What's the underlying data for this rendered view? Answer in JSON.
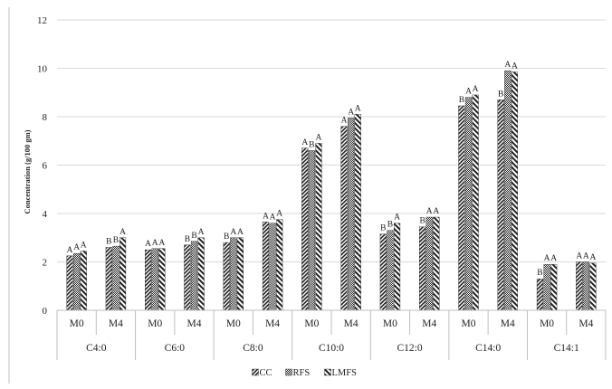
{
  "chart_data": {
    "type": "bar",
    "ylabel": "Concentration  (g/100 gm)",
    "ylim": [
      0,
      12
    ],
    "yticks": [
      "0",
      "2",
      "4",
      "6",
      "8",
      "10",
      "12"
    ],
    "grid": true,
    "legend_position": "bottom",
    "groups": [
      {
        "label": "C4:0",
        "categories": [
          "M0",
          "M4"
        ]
      },
      {
        "label": "C6:0",
        "categories": [
          "M0",
          "M4"
        ]
      },
      {
        "label": "C8:0",
        "categories": [
          "M0",
          "M4"
        ]
      },
      {
        "label": "C10:0",
        "categories": [
          "M0",
          "M4"
        ]
      },
      {
        "label": "C12:0",
        "categories": [
          "M0",
          "M4"
        ]
      },
      {
        "label": "C14:0",
        "categories": [
          "M0",
          "M4"
        ]
      },
      {
        "label": "C14:1",
        "categories": [
          "M0",
          "M4"
        ]
      }
    ],
    "series": [
      {
        "name": "CC",
        "pattern": "diagonal",
        "values": [
          2.25,
          2.6,
          2.5,
          2.7,
          2.8,
          3.65,
          6.7,
          7.6,
          3.15,
          3.45,
          8.45,
          8.7,
          1.3,
          2.0
        ],
        "letters": [
          "A",
          "B",
          "A",
          "B",
          "B",
          "A",
          "A",
          "A",
          "B",
          "B",
          "B",
          "B",
          "B",
          "A"
        ]
      },
      {
        "name": "RFS",
        "pattern": "checker",
        "values": [
          2.35,
          2.65,
          2.55,
          2.85,
          3.0,
          3.6,
          6.6,
          7.95,
          3.3,
          3.85,
          8.8,
          9.9,
          1.9,
          2.0
        ],
        "letters": [
          "A",
          "B",
          "A",
          "B",
          "A",
          "A",
          "B",
          "A",
          "B",
          "A",
          "A",
          "A",
          "A",
          "A"
        ]
      },
      {
        "name": "LMFS",
        "pattern": "antidiagonal",
        "values": [
          2.45,
          3.0,
          2.55,
          3.0,
          3.0,
          3.75,
          6.9,
          8.1,
          3.6,
          3.85,
          8.9,
          9.85,
          1.9,
          1.95
        ],
        "letters": [
          "A",
          "A",
          "A",
          "A",
          "A",
          "A",
          "A",
          "A",
          "A",
          "A",
          "A",
          "A",
          "A",
          "A"
        ]
      }
    ],
    "colors": {
      "bar": "#222222",
      "grid": "#d9d9d9",
      "axis": "#bfbfbf"
    }
  }
}
